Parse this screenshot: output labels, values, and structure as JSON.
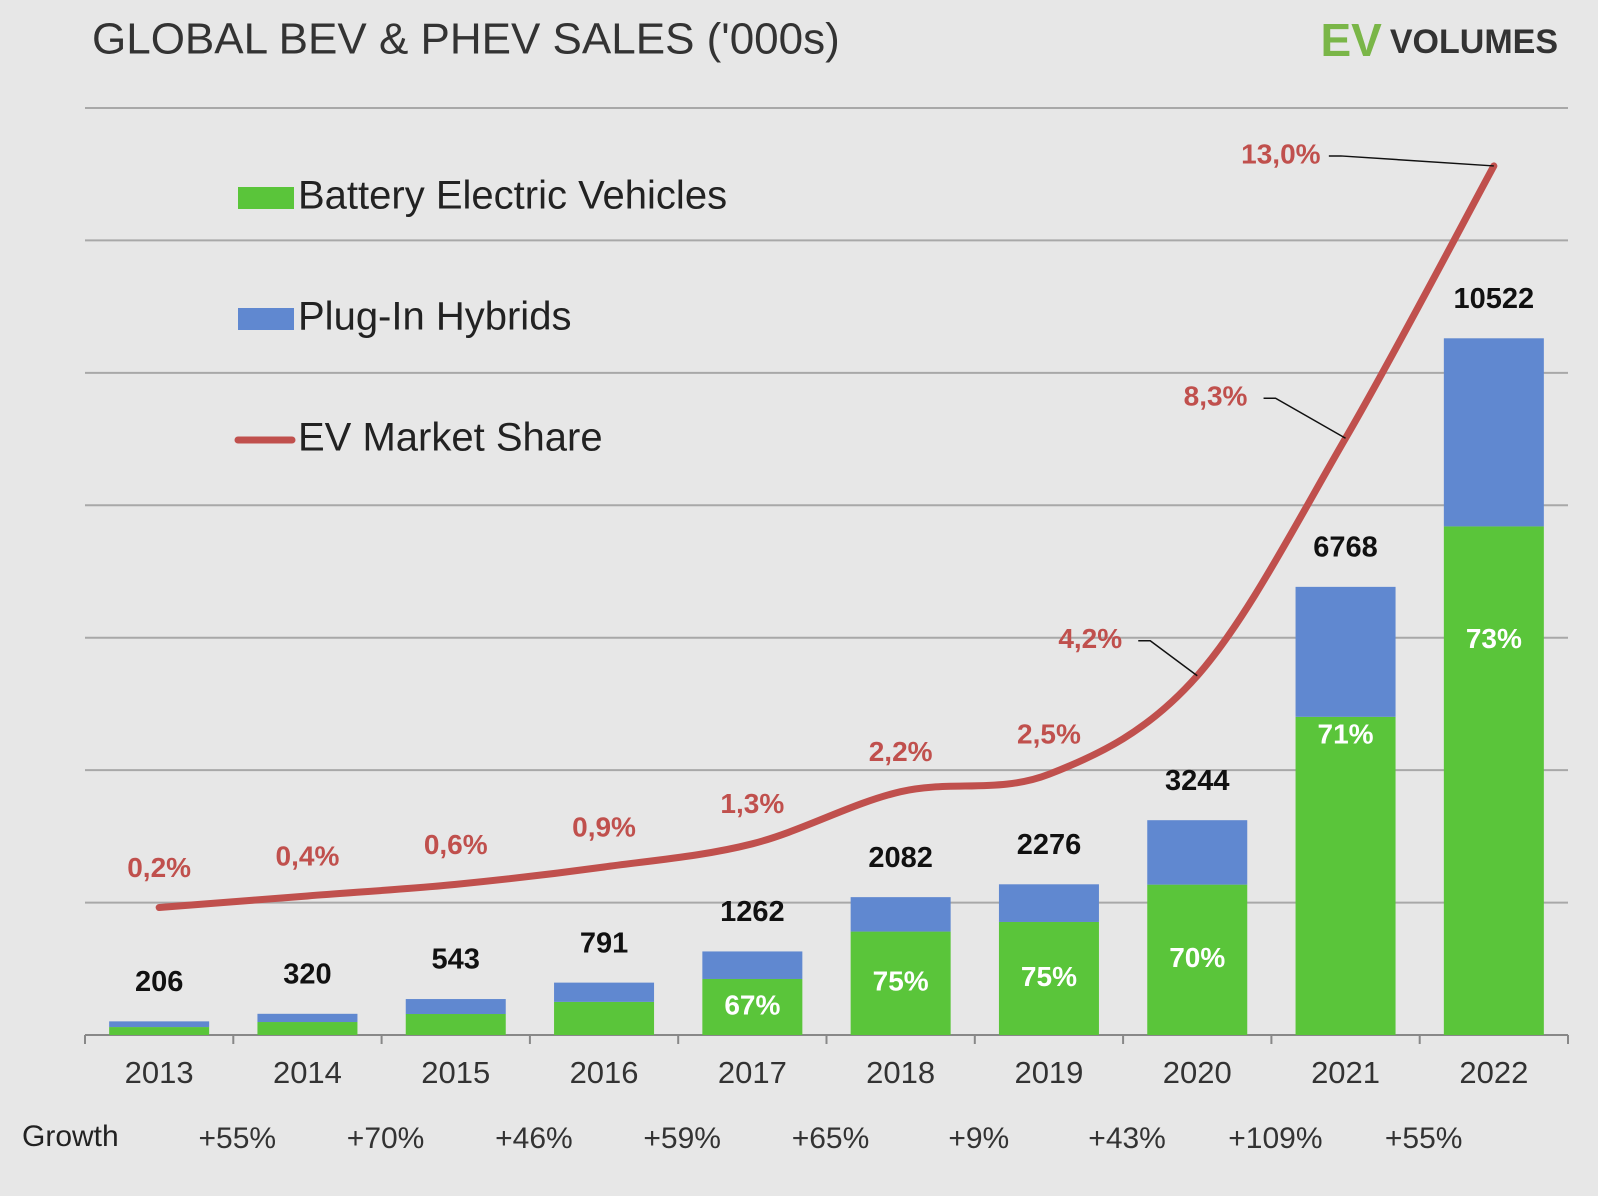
{
  "chart_data": {
    "type": "bar",
    "title": "GLOBAL BEV & PHEV SALES ('000s)",
    "logo": {
      "ev": "EV",
      "volumes": "VOLUMES"
    },
    "categories": [
      "2013",
      "2014",
      "2015",
      "2016",
      "2017",
      "2018",
      "2019",
      "2020",
      "2021",
      "2022"
    ],
    "series": [
      {
        "name": "Battery Electric Vehicles",
        "color": "#5ac53a",
        "type": "bar",
        "values": [
          120,
          196,
          317,
          500,
          846,
          1562,
          1707,
          2271,
          4805,
          7681
        ],
        "share_labels": [
          null,
          null,
          null,
          null,
          "67%",
          "75%",
          "75%",
          "70%",
          "71%",
          "73%"
        ]
      },
      {
        "name": "Plug-In Hybrids",
        "color": "#6088d0",
        "type": "bar",
        "values": [
          86,
          124,
          226,
          291,
          416,
          520,
          569,
          973,
          1963,
          2841
        ]
      },
      {
        "name": "EV Market Share",
        "color": "#c0504d",
        "type": "line",
        "axis": "y2",
        "values": [
          0.2,
          0.4,
          0.6,
          0.9,
          1.3,
          2.2,
          2.5,
          4.2,
          8.3,
          13.0
        ],
        "value_labels": [
          "0,2%",
          "0,4%",
          "0,6%",
          "0,9%",
          "1,3%",
          "2,2%",
          "2,5%",
          "4,2%",
          "8,3%",
          "13,0%"
        ]
      }
    ],
    "totals": [
      206,
      320,
      543,
      791,
      1262,
      2082,
      2276,
      3244,
      6768,
      10522
    ],
    "growth_label": "Growth",
    "growth": [
      "+55%",
      "+70%",
      "+46%",
      "+59%",
      "+65%",
      "+9%",
      "+43%",
      "+109%",
      "+55%"
    ],
    "ylim": [
      0,
      14000
    ],
    "yticks": [
      0,
      2000,
      4000,
      6000,
      8000,
      10000,
      12000,
      14000
    ],
    "y2lim": [
      -2,
      14
    ],
    "grid": true,
    "legend": "top-left"
  }
}
